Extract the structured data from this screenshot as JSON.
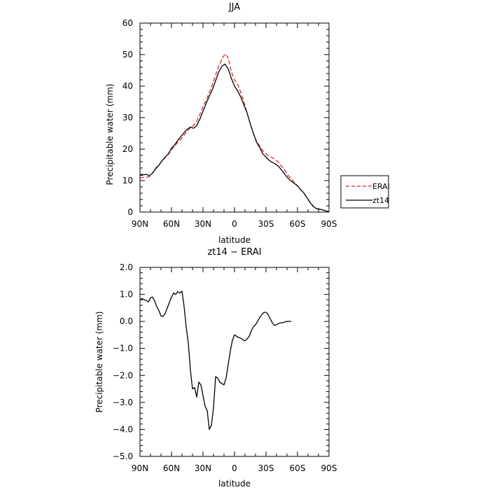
{
  "chart_data": [
    {
      "type": "line",
      "title": "JJA",
      "xlabel": "latitude",
      "ylabel": "Precipitable water (mm)",
      "xlim": [
        90,
        -90
      ],
      "ylim": [
        0,
        60
      ],
      "x_tick_labels": [
        "90N",
        "60N",
        "30N",
        "0",
        "30S",
        "60S",
        "90S"
      ],
      "x_tick_values": [
        90,
        60,
        30,
        0,
        -30,
        -60,
        -90
      ],
      "y_tick_labels": [
        "0",
        "10",
        "20",
        "30",
        "40",
        "50",
        "60"
      ],
      "y_tick_values": [
        0,
        10,
        20,
        30,
        40,
        50,
        60
      ],
      "grid": false,
      "legend_position": "outside-right",
      "series": [
        {
          "name": "ERAI",
          "color": "#e8202a",
          "dash": "dashed",
          "points": [
            [
              90,
              10.8
            ],
            [
              87,
              11.0
            ],
            [
              84,
              11.0
            ],
            [
              81,
              11.3
            ],
            [
              78,
              12.5
            ],
            [
              75,
              14.0
            ],
            [
              72,
              15.0
            ],
            [
              69,
              16.2
            ],
            [
              66,
              17.3
            ],
            [
              63,
              18.4
            ],
            [
              60,
              19.8
            ],
            [
              57,
              21.0
            ],
            [
              54,
              22.2
            ],
            [
              51,
              23.2
            ],
            [
              48,
              24.4
            ],
            [
              45,
              25.7
            ],
            [
              42,
              26.8
            ],
            [
              39,
              27.5
            ],
            [
              36,
              28.8
            ],
            [
              33,
              31.0
            ],
            [
              30,
              33.5
            ],
            [
              27,
              35.5
            ],
            [
              24,
              38.0
            ],
            [
              21,
              40.5
            ],
            [
              18,
              43.5
            ],
            [
              15,
              46.3
            ],
            [
              12,
              48.5
            ],
            [
              9,
              50.3
            ],
            [
              6,
              49.0
            ],
            [
              3,
              44.5
            ],
            [
              0,
              42.0
            ],
            [
              -3,
              40.5
            ],
            [
              -6,
              38.0
            ],
            [
              -9,
              35.0
            ],
            [
              -12,
              31.5
            ],
            [
              -15,
              28.0
            ],
            [
              -18,
              25.0
            ],
            [
              -21,
              22.5
            ],
            [
              -24,
              21.0
            ],
            [
              -27,
              19.5
            ],
            [
              -30,
              18.5
            ],
            [
              -33,
              17.8
            ],
            [
              -36,
              17.3
            ],
            [
              -39,
              16.6
            ],
            [
              -42,
              15.8
            ],
            [
              -45,
              14.5
            ],
            [
              -48,
              13.2
            ],
            [
              -51,
              11.7
            ],
            [
              -54,
              10.6
            ],
            [
              -57,
              9.4
            ],
            [
              -60,
              8.3
            ],
            [
              -63,
              7.2
            ],
            [
              -66,
              6.0
            ],
            [
              -69,
              4.6
            ],
            [
              -72,
              3.1
            ],
            [
              -75,
              1.9
            ],
            [
              -78,
              1.2
            ],
            [
              -81,
              1.0
            ],
            [
              -84,
              0.7
            ],
            [
              -87,
              0.4
            ],
            [
              -90,
              0.1
            ]
          ]
        },
        {
          "name": "zt14",
          "color": "#000000",
          "dash": "solid",
          "points": [
            [
              90,
              11.6
            ],
            [
              87,
              11.8
            ],
            [
              84,
              12.0
            ],
            [
              81,
              11.5
            ],
            [
              78,
              12.4
            ],
            [
              75,
              13.8
            ],
            [
              72,
              14.9
            ],
            [
              69,
              16.3
            ],
            [
              66,
              17.5
            ],
            [
              63,
              18.5
            ],
            [
              60,
              20.3
            ],
            [
              57,
              21.3
            ],
            [
              54,
              22.8
            ],
            [
              51,
              24.0
            ],
            [
              48,
              25.2
            ],
            [
              45,
              26.3
            ],
            [
              42,
              27.0
            ],
            [
              39,
              26.6
            ],
            [
              36,
              27.5
            ],
            [
              33,
              29.5
            ],
            [
              30,
              32.0
            ],
            [
              27,
              34.5
            ],
            [
              24,
              36.8
            ],
            [
              21,
              39.0
            ],
            [
              18,
              41.7
            ],
            [
              15,
              44.5
            ],
            [
              12,
              46.3
            ],
            [
              9,
              47.0
            ],
            [
              6,
              45.5
            ],
            [
              3,
              42.5
            ],
            [
              0,
              40.0
            ],
            [
              -3,
              38.5
            ],
            [
              -6,
              36.5
            ],
            [
              -9,
              34.0
            ],
            [
              -12,
              31.5
            ],
            [
              -15,
              28.0
            ],
            [
              -18,
              25.0
            ],
            [
              -21,
              22.2
            ],
            [
              -24,
              20.5
            ],
            [
              -27,
              18.5
            ],
            [
              -30,
              17.5
            ],
            [
              -33,
              16.4
            ],
            [
              -36,
              15.8
            ],
            [
              -39,
              15.3
            ],
            [
              -42,
              14.5
            ],
            [
              -45,
              13.3
            ],
            [
              -48,
              12.0
            ],
            [
              -51,
              10.8
            ],
            [
              -54,
              9.8
            ],
            [
              -57,
              9.1
            ],
            [
              -60,
              8.4
            ],
            [
              -63,
              7.1
            ],
            [
              -66,
              6.1
            ],
            [
              -69,
              4.6
            ],
            [
              -72,
              3.0
            ],
            [
              -75,
              1.8
            ],
            [
              -78,
              1.1
            ],
            [
              -81,
              0.9
            ],
            [
              -84,
              0.7
            ],
            [
              -87,
              0.4
            ],
            [
              -90,
              0.1
            ]
          ]
        }
      ]
    },
    {
      "type": "line",
      "title": "zt14 − ERAI",
      "xlabel": "latitude",
      "ylabel": "Precipitable water (mm)",
      "xlim": [
        90,
        -90
      ],
      "ylim": [
        -5,
        2
      ],
      "x_tick_labels": [
        "90N",
        "60N",
        "30N",
        "0",
        "30S",
        "60S",
        "90S"
      ],
      "x_tick_values": [
        90,
        60,
        30,
        0,
        -30,
        -60,
        -90
      ],
      "y_tick_labels": [
        "−5.0",
        "−4.0",
        "−3.0",
        "−2.0",
        "−1.0",
        "0.0",
        "1.0",
        "2.0"
      ],
      "y_tick_values": [
        -5,
        -4,
        -3,
        -2,
        -1,
        0,
        1,
        2
      ],
      "grid": false,
      "series": [
        {
          "color": "#000000",
          "dash": "solid",
          "points": [
            [
              90,
              0.8
            ],
            [
              88,
              0.85
            ],
            [
              86,
              0.8
            ],
            [
              84,
              0.78
            ],
            [
              82,
              0.72
            ],
            [
              80,
              0.88
            ],
            [
              78,
              0.9
            ],
            [
              76,
              0.75
            ],
            [
              74,
              0.55
            ],
            [
              72,
              0.4
            ],
            [
              70,
              0.2
            ],
            [
              68,
              0.18
            ],
            [
              66,
              0.3
            ],
            [
              64,
              0.5
            ],
            [
              62,
              0.7
            ],
            [
              60,
              0.9
            ],
            [
              58,
              1.05
            ],
            [
              56,
              1.0
            ],
            [
              54,
              1.1
            ],
            [
              52,
              1.05
            ],
            [
              50,
              1.12
            ],
            [
              48,
              0.55
            ],
            [
              46,
              -0.2
            ],
            [
              44,
              -0.8
            ],
            [
              42,
              -1.8
            ],
            [
              40,
              -2.5
            ],
            [
              38,
              -2.45
            ],
            [
              36,
              -2.8
            ],
            [
              34,
              -2.25
            ],
            [
              32,
              -2.35
            ],
            [
              30,
              -2.75
            ],
            [
              28,
              -3.15
            ],
            [
              26,
              -3.3
            ],
            [
              24,
              -4.0
            ],
            [
              22,
              -3.85
            ],
            [
              20,
              -3.2
            ],
            [
              18,
              -2.05
            ],
            [
              16,
              -2.1
            ],
            [
              14,
              -2.25
            ],
            [
              12,
              -2.3
            ],
            [
              10,
              -2.35
            ],
            [
              8,
              -2.1
            ],
            [
              6,
              -1.6
            ],
            [
              4,
              -1.1
            ],
            [
              2,
              -0.7
            ],
            [
              0,
              -0.5
            ],
            [
              -2,
              -0.55
            ],
            [
              -4,
              -0.6
            ],
            [
              -6,
              -0.62
            ],
            [
              -8,
              -0.68
            ],
            [
              -10,
              -0.72
            ],
            [
              -12,
              -0.65
            ],
            [
              -14,
              -0.55
            ],
            [
              -16,
              -0.35
            ],
            [
              -18,
              -0.2
            ],
            [
              -20,
              -0.12
            ],
            [
              -22,
              0.0
            ],
            [
              -24,
              0.15
            ],
            [
              -26,
              0.25
            ],
            [
              -28,
              0.33
            ],
            [
              -30,
              0.34
            ],
            [
              -32,
              0.25
            ],
            [
              -34,
              0.1
            ],
            [
              -36,
              -0.05
            ],
            [
              -38,
              -0.15
            ],
            [
              -40,
              -0.12
            ],
            [
              -42,
              -0.08
            ],
            [
              -44,
              -0.05
            ],
            [
              -46,
              -0.05
            ],
            [
              -48,
              -0.02
            ],
            [
              -50,
              0.0
            ],
            [
              -52,
              0.0
            ],
            [
              -54,
              0.0
            ]
          ]
        }
      ]
    }
  ]
}
